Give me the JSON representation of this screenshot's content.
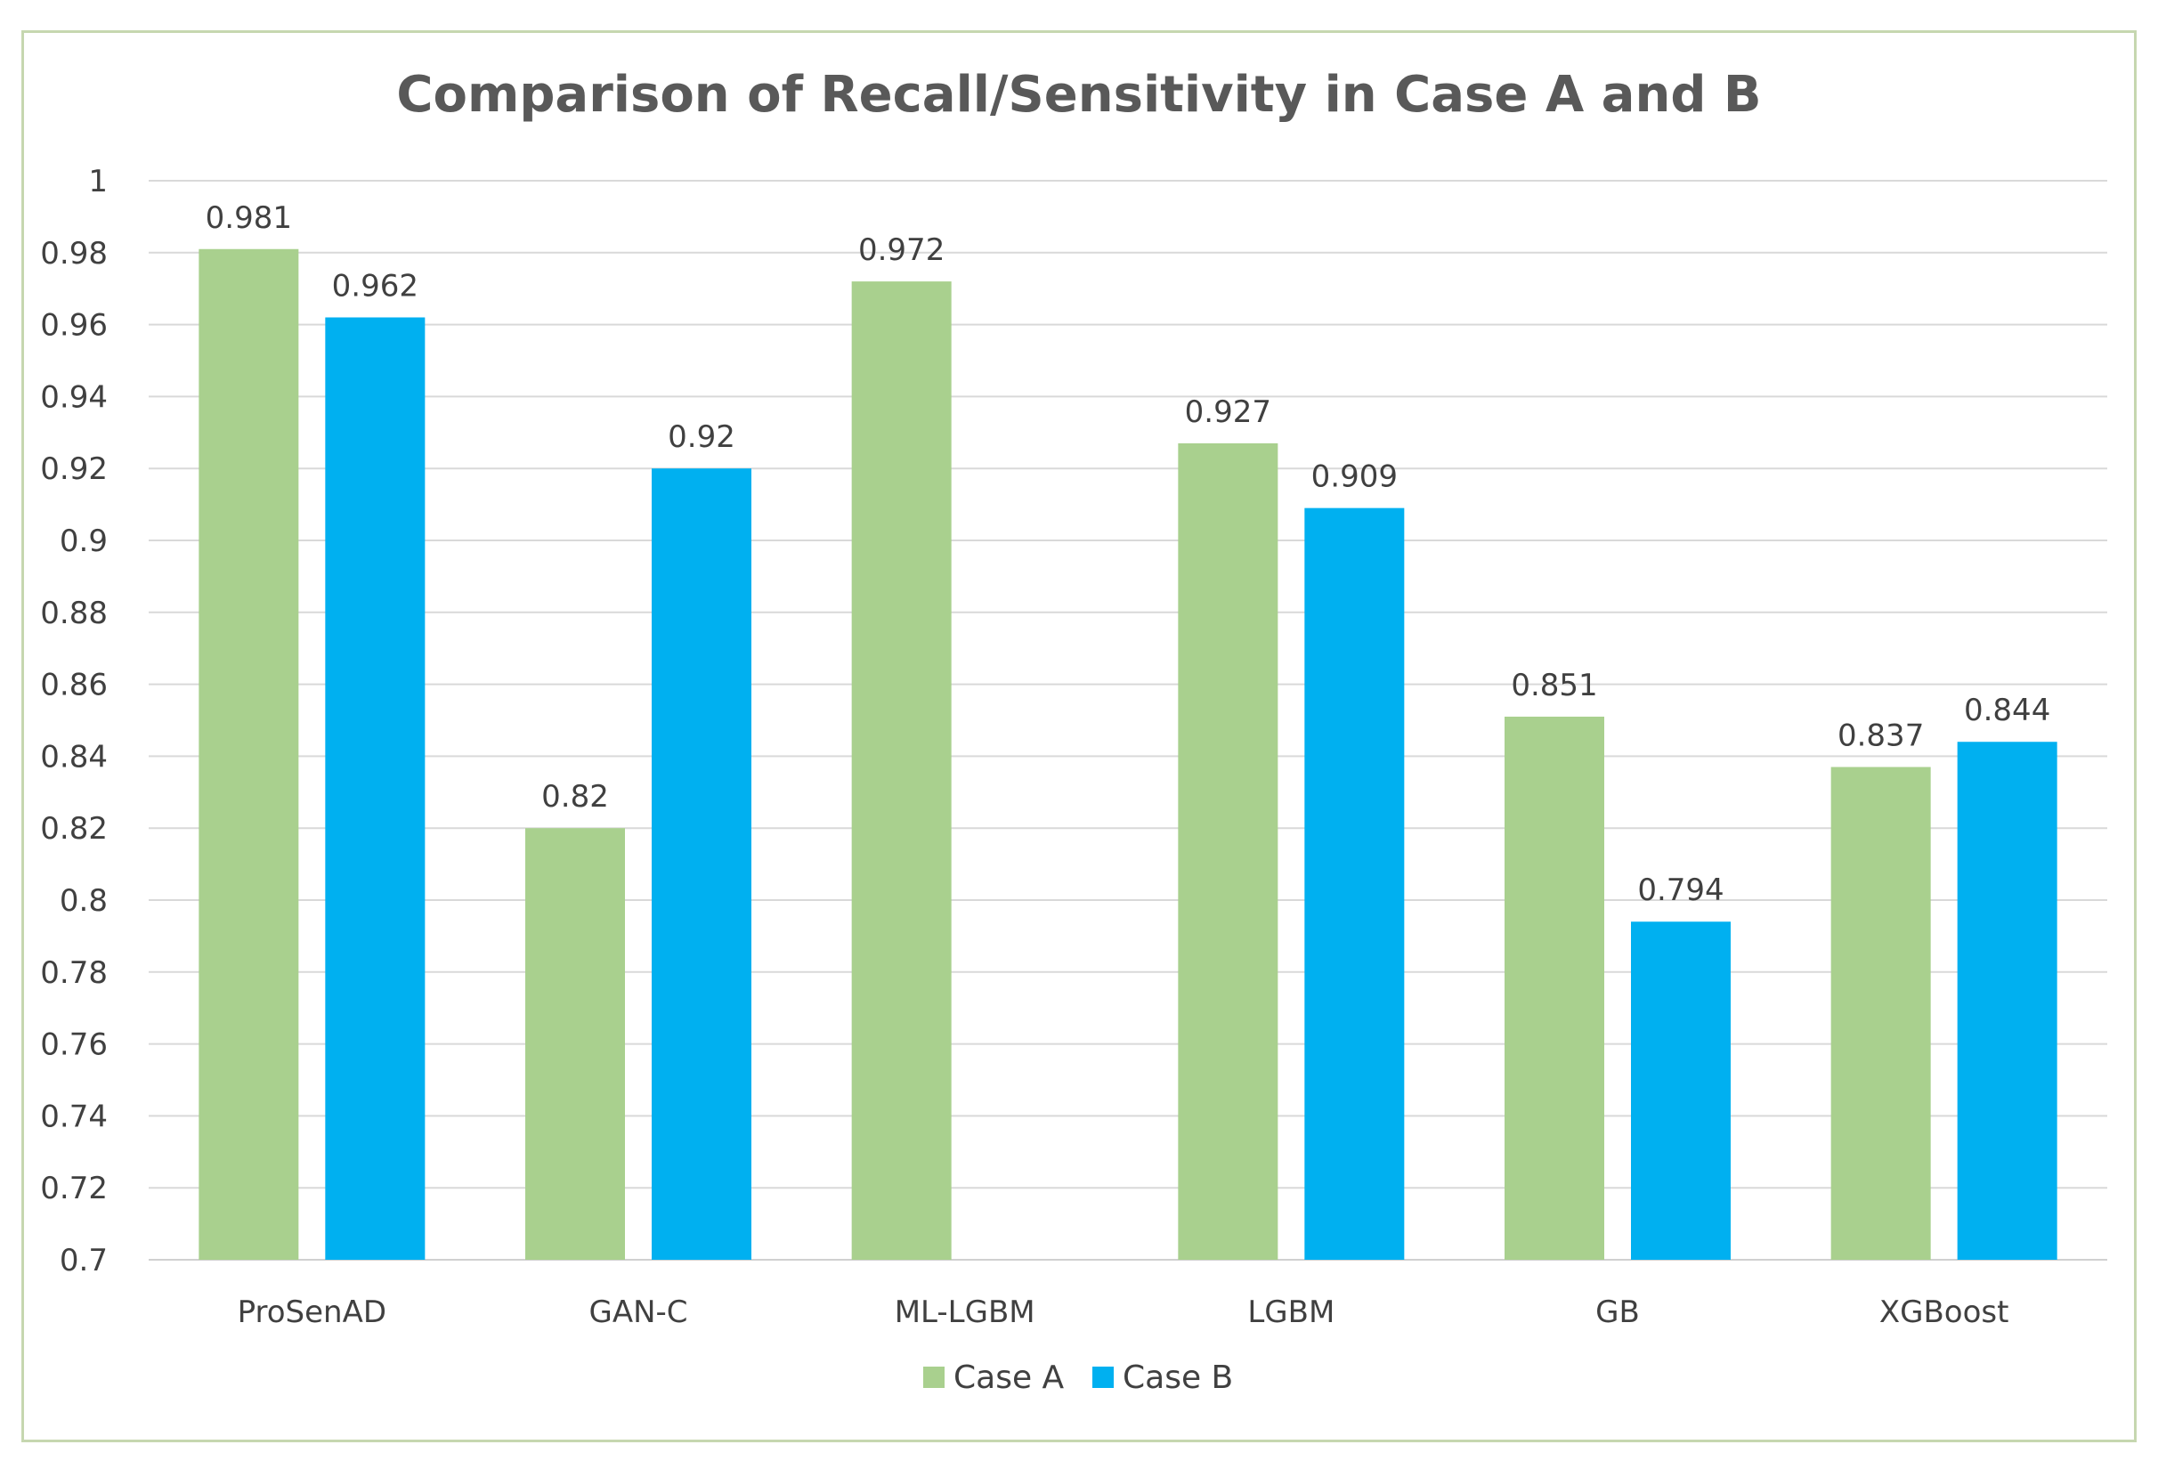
{
  "chart_data": {
    "type": "bar",
    "title": "Comparison of Recall/Sensitivity in Case A and B",
    "xlabel": "",
    "ylabel": "",
    "ylim": [
      0.7,
      1
    ],
    "yticks": [
      "1",
      "0.98",
      "0.96",
      "0.94",
      "0.92",
      "0.9",
      "0.88",
      "0.86",
      "0.84",
      "0.82",
      "0.8",
      "0.78",
      "0.76",
      "0.74",
      "0.72",
      "0.7"
    ],
    "grid": true,
    "legend_position": "bottom",
    "categories": [
      "ProSenAD",
      "GAN-C",
      "ML-LGBM",
      "LGBM",
      "GB",
      "XGBoost"
    ],
    "series": [
      {
        "name": "Case A",
        "color": "#a9d08e",
        "values": [
          0.981,
          0.82,
          0.972,
          0.927,
          0.851,
          0.837
        ],
        "labels": [
          "0.981",
          "0.82",
          "0.972",
          "0.927",
          "0.851",
          "0.837"
        ]
      },
      {
        "name": "Case B",
        "color": "#00b0f0",
        "values": [
          0.962,
          0.92,
          null,
          0.909,
          0.794,
          0.844
        ],
        "labels": [
          "0.962",
          "0.92",
          null,
          "0.909",
          "0.794",
          "0.844"
        ]
      }
    ]
  }
}
